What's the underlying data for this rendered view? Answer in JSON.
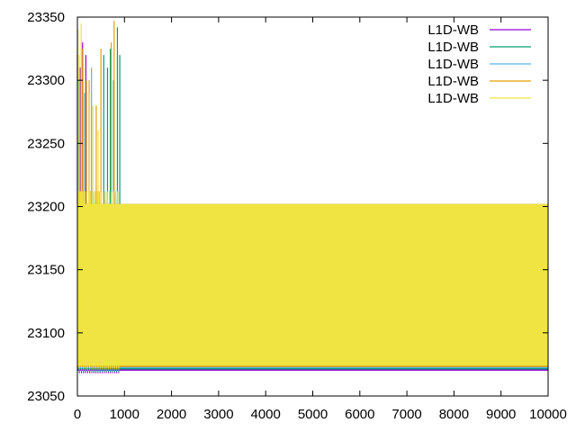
{
  "chart_data": {
    "type": "line",
    "title": "",
    "xlabel": "",
    "ylabel": "",
    "xlim": [
      0,
      10000
    ],
    "ylim": [
      23050,
      23350
    ],
    "x_ticks": [
      "0",
      "1000",
      "2000",
      "3000",
      "4000",
      "5000",
      "6000",
      "7000",
      "8000",
      "9000",
      "10000"
    ],
    "y_ticks": [
      "23050",
      "23100",
      "23150",
      "23200",
      "23250",
      "23300",
      "23350"
    ],
    "grid": false,
    "legend_placement": "top-right",
    "series": [
      {
        "name": "L1D-WB",
        "color": "#9400d3",
        "band": [
          23070,
          23202
        ],
        "spikes": [
          [
            0,
            23320
          ],
          [
            60,
            23310
          ],
          [
            110,
            23330
          ],
          [
            180,
            23320
          ]
        ]
      },
      {
        "name": "L1D-WB",
        "color": "#009e73",
        "band": [
          23071,
          23202
        ],
        "spikes": [
          [
            560,
            23320
          ],
          [
            640,
            23310
          ],
          [
            700,
            23325
          ],
          [
            770,
            23300
          ],
          [
            850,
            23342
          ],
          [
            900,
            23320
          ]
        ]
      },
      {
        "name": "L1D-WB",
        "color": "#56b4e9",
        "band": [
          23072,
          23202
        ],
        "spikes": [
          [
            30,
            23300
          ],
          [
            150,
            23290
          ],
          [
            300,
            23310
          ]
        ]
      },
      {
        "name": "L1D-WB",
        "color": "#e69f00",
        "band": [
          23073,
          23202
        ],
        "spikes": [
          [
            100,
            23325
          ],
          [
            250,
            23300
          ],
          [
            400,
            23280
          ],
          [
            500,
            23325
          ],
          [
            720,
            23330
          ],
          [
            780,
            23347
          ]
        ]
      },
      {
        "name": "L1D-WB",
        "color": "#f0e442",
        "band": [
          23074,
          23202
        ],
        "spikes": [
          [
            10,
            23340
          ],
          [
            40,
            23320
          ],
          [
            80,
            23345
          ],
          [
            130,
            23310
          ],
          [
            200,
            23300
          ],
          [
            260,
            23290
          ],
          [
            330,
            23280
          ],
          [
            440,
            23260
          ]
        ]
      }
    ]
  }
}
